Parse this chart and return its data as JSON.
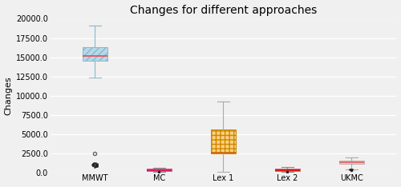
{
  "title": "Changes for different approaches",
  "ylabel": "Changes",
  "categories": [
    "MMWT",
    "MC",
    "Lex 1",
    "Lex 2",
    "UKMC"
  ],
  "ylim": [
    0.0,
    20000.0
  ],
  "yticks": [
    0.0,
    2500.0,
    5000.0,
    7500.0,
    10000.0,
    12500.0,
    15000.0,
    17500.0,
    20000.0
  ],
  "boxes": [
    {
      "label": "MMWT",
      "q1": 14500,
      "median": 15200,
      "q3": 16300,
      "whislo": 12300,
      "whishi": 19100,
      "flier_above": 2500,
      "flier_cluster_vals": [
        700,
        750,
        780,
        820,
        850,
        870,
        900,
        920,
        950,
        980,
        1010,
        1050,
        1080,
        1100,
        1130,
        1150,
        1180,
        1200
      ],
      "box_color": "#b8d8e8",
      "box_edge_color": "#8ab8cc",
      "hatch": "////",
      "median_color": "#e05050",
      "whisker_color": "#8ab8cc"
    },
    {
      "label": "MC",
      "q1": 180,
      "median": 320,
      "q3": 460,
      "whislo": 60,
      "whishi": 620,
      "flier_above": null,
      "flier_cluster_vals": [],
      "box_color": "#ffaaaa",
      "box_edge_color": "#cc6666",
      "hatch": "",
      "median_color": "#cc0066",
      "whisker_color": "#888888"
    },
    {
      "label": "Lex 1",
      "q1": 2500,
      "median": 2600,
      "q3": 5600,
      "whislo": 80,
      "whishi": 9200,
      "flier_above": null,
      "flier_cluster_vals": [],
      "box_color": "#ffd080",
      "box_edge_color": "#cc8800",
      "hatch": "+++",
      "median_color": "#cc6600",
      "whisker_color": "#aaaaaa"
    },
    {
      "label": "Lex 2",
      "q1": 150,
      "median": 320,
      "q3": 480,
      "whislo": 50,
      "whishi": 650,
      "flier_above": null,
      "flier_cluster_vals": [],
      "box_color": "#ffaaaa",
      "box_edge_color": "#cc6666",
      "hatch": "",
      "median_color": "#cc0000",
      "whisker_color": "#888888"
    },
    {
      "label": "UKMC",
      "q1": 1150,
      "median": 1350,
      "q3": 1550,
      "whislo": 350,
      "whishi": 1900,
      "flier_above": null,
      "flier_cluster_vals": [
        350,
        360,
        340,
        330
      ],
      "box_color": "#ffbbbb",
      "box_edge_color": "#ccaaaa",
      "hatch": "",
      "median_color": "#dd6666",
      "whisker_color": "#aaaaaa"
    }
  ],
  "background_color": "#f0f0f0",
  "grid_color": "#ffffff",
  "title_fontsize": 10,
  "label_fontsize": 8,
  "tick_fontsize": 7
}
